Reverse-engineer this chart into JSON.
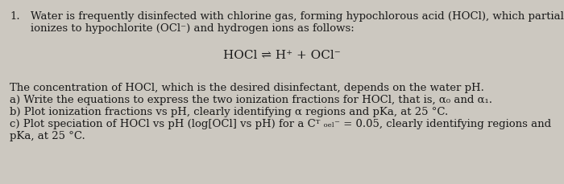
{
  "background_color": "#ccc8c0",
  "text_color": "#1a1a1a",
  "figsize": [
    7.0,
    2.29
  ],
  "dpi": 100,
  "number": "1.",
  "line1": "Water is frequently disinfected with chlorine gas, forming hypochlorous acid (HOCl), which partially",
  "line2": "ionizes to hypochlorite (OCl⁻) and hydrogen ions as follows:",
  "equation": "HOCl ⇌ H⁺ + OCl⁻",
  "body_line1": "The concentration of HOCl, which is the desired disinfectant, depends on the water pH.",
  "body_line2": "a) Write the equations to express the two ionization fractions for HOCl, that is, α₀ and α₁.",
  "body_line3": "b) Plot ionization fractions vs pH, clearly identifying α regions and pKa, at 25 °C.",
  "body_line4": "c) Plot speciation of HOCl vs pH (log[OCl] vs pH) for a Cᵀ ₒₑₗ⁻ = 0.05, clearly identifying regions and",
  "body_line5": "pKa, at 25 °C.",
  "font_family": "serif",
  "main_fontsize": 9.5,
  "eq_fontsize": 11
}
